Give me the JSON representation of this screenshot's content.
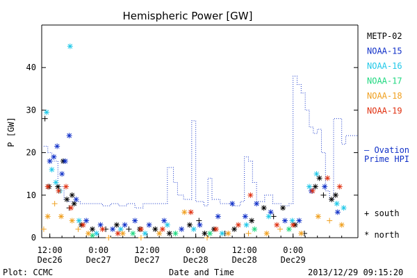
{
  "chart_data": {
    "type": "scatter",
    "title": "Hemispheric Power [GW]",
    "ylabel": "P [GW]",
    "xlabel": "Date and Time",
    "footer_left": "Plot: CCMC",
    "footer_right": "2013/12/29 09:15:20",
    "ylim": [
      0,
      50
    ],
    "yticks": [
      0,
      10,
      20,
      30,
      40
    ],
    "xlim_hours": [
      -14,
      45
    ],
    "xticks": [
      {
        "h": -12,
        "time": "12:00",
        "date": "Dec26"
      },
      {
        "h": 0,
        "time": "0:00",
        "date": "Dec27"
      },
      {
        "h": 12,
        "time": "12:00",
        "date": "Dec27"
      },
      {
        "h": 24,
        "time": "0:00",
        "date": "Dec28"
      },
      {
        "h": 36,
        "time": "12:00",
        "date": "Dec28"
      },
      {
        "h": 48,
        "time": "0:00",
        "date": "Dec29"
      }
    ],
    "legend": {
      "satellites": [
        {
          "name": "METP-02",
          "color": "#000000"
        },
        {
          "name": "NOAA-15",
          "color": "#1030c8"
        },
        {
          "name": "NOAA-16",
          "color": "#20c8e8"
        },
        {
          "name": "NOAA-17",
          "color": "#20d880"
        },
        {
          "name": "NOAA-18",
          "color": "#f0a020"
        },
        {
          "name": "NOAA-19",
          "color": "#e03010"
        }
      ],
      "ovation_label": [
        "— Ovation",
        "Prime HPI"
      ],
      "ovation_color": "#1030c8",
      "symbols": [
        {
          "symbol": "+",
          "label": "south"
        },
        {
          "symbol": "*",
          "label": "north"
        }
      ]
    },
    "ovation_series": [
      [
        -13.5,
        21.5
      ],
      [
        -12.5,
        20
      ],
      [
        -11.5,
        18
      ],
      [
        -10,
        12
      ],
      [
        -8.5,
        9
      ],
      [
        -7.5,
        8.5
      ],
      [
        -4.5,
        8
      ],
      [
        -2,
        8
      ],
      [
        1,
        7.5
      ],
      [
        3,
        8
      ],
      [
        5,
        7.5
      ],
      [
        7,
        8
      ],
      [
        9,
        7
      ],
      [
        11,
        8
      ],
      [
        14,
        8
      ],
      [
        17,
        16.5
      ],
      [
        18.5,
        13
      ],
      [
        19.5,
        10
      ],
      [
        21,
        9
      ],
      [
        23,
        27.5
      ],
      [
        24,
        8.5
      ],
      [
        26,
        7.5
      ],
      [
        27,
        14
      ],
      [
        28,
        9
      ],
      [
        30,
        8
      ],
      [
        33,
        7.5
      ],
      [
        35,
        8.5
      ],
      [
        36,
        19
      ],
      [
        37,
        18
      ],
      [
        38,
        13
      ],
      [
        39,
        8.5
      ],
      [
        41,
        10
      ],
      [
        43,
        8
      ],
      [
        45,
        7.5
      ],
      [
        47,
        8
      ],
      [
        48,
        38
      ],
      [
        49,
        36
      ],
      [
        50,
        34
      ],
      [
        51,
        30
      ],
      [
        52,
        26
      ],
      [
        53,
        24.5
      ],
      [
        54,
        25.5
      ],
      [
        55,
        20
      ],
      [
        56,
        11
      ],
      [
        57,
        9
      ],
      [
        58,
        28
      ],
      [
        60,
        22
      ],
      [
        61,
        24
      ],
      [
        62,
        24
      ]
    ],
    "points": [
      {
        "sat": "METP-02",
        "hem": "south",
        "x": -13.2,
        "y": 28
      },
      {
        "sat": "METP-02",
        "hem": "north",
        "x": -12.2,
        "y": 12
      },
      {
        "sat": "METP-02",
        "hem": "north",
        "x": -10.0,
        "y": 12
      },
      {
        "sat": "METP-02",
        "hem": "north",
        "x": -8.7,
        "y": 18
      },
      {
        "sat": "METP-02",
        "hem": "north",
        "x": -7.8,
        "y": 9
      },
      {
        "sat": "METP-02",
        "hem": "north",
        "x": -6.5,
        "y": 10
      },
      {
        "sat": "METP-02",
        "hem": "north",
        "x": -6.0,
        "y": 8
      },
      {
        "sat": "METP-02",
        "hem": "south",
        "x": -7.2,
        "y": 7
      },
      {
        "sat": "METP-02",
        "hem": "north",
        "x": -4.2,
        "y": 3
      },
      {
        "sat": "METP-02",
        "hem": "north",
        "x": -1.5,
        "y": 2
      },
      {
        "sat": "METP-02",
        "hem": "south",
        "x": 1.8,
        "y": 2
      },
      {
        "sat": "METP-02",
        "hem": "north",
        "x": 4.5,
        "y": 3
      },
      {
        "sat": "METP-02",
        "hem": "south",
        "x": 7.5,
        "y": 2
      },
      {
        "sat": "METP-02",
        "hem": "north",
        "x": 10.2,
        "y": 2
      },
      {
        "sat": "METP-02",
        "hem": "north",
        "x": 14.0,
        "y": 2
      },
      {
        "sat": "METP-02",
        "hem": "north",
        "x": 17.5,
        "y": 1
      },
      {
        "sat": "METP-02",
        "hem": "north",
        "x": 22.5,
        "y": 3
      },
      {
        "sat": "METP-02",
        "hem": "south",
        "x": 24.8,
        "y": 4
      },
      {
        "sat": "METP-02",
        "hem": "north",
        "x": 26.2,
        "y": 1
      },
      {
        "sat": "METP-02",
        "hem": "north",
        "x": 28.5,
        "y": 2
      },
      {
        "sat": "METP-02",
        "hem": "south",
        "x": 31.2,
        "y": 1
      },
      {
        "sat": "METP-02",
        "hem": "north",
        "x": 33.5,
        "y": 2
      },
      {
        "sat": "METP-02",
        "hem": "north",
        "x": 37.8,
        "y": 4
      },
      {
        "sat": "METP-02",
        "hem": "north",
        "x": 40.8,
        "y": 7
      },
      {
        "sat": "METP-02",
        "hem": "south",
        "x": 43.2,
        "y": 5
      },
      {
        "sat": "METP-02",
        "hem": "north",
        "x": 45.5,
        "y": 7
      },
      {
        "sat": "METP-02",
        "hem": "north",
        "x": 48.5,
        "y": 3
      },
      {
        "sat": "METP-02",
        "hem": "south",
        "x": 50.8,
        "y": 1
      },
      {
        "sat": "METP-02",
        "hem": "north",
        "x": 53.5,
        "y": 12
      },
      {
        "sat": "METP-02",
        "hem": "north",
        "x": 54.5,
        "y": 14
      },
      {
        "sat": "METP-02",
        "hem": "south",
        "x": 55.5,
        "y": 10
      },
      {
        "sat": "METP-02",
        "hem": "north",
        "x": 57.5,
        "y": 9
      },
      {
        "sat": "METP-02",
        "hem": "north",
        "x": 58.5,
        "y": 10
      },
      {
        "sat": "NOAA-15",
        "hem": "north",
        "x": -12.0,
        "y": 18
      },
      {
        "sat": "NOAA-15",
        "hem": "north",
        "x": -11.0,
        "y": 19
      },
      {
        "sat": "NOAA-15",
        "hem": "north",
        "x": -10.2,
        "y": 21.5
      },
      {
        "sat": "NOAA-15",
        "hem": "north",
        "x": -9.0,
        "y": 15
      },
      {
        "sat": "NOAA-15",
        "hem": "north",
        "x": -8.2,
        "y": 18
      },
      {
        "sat": "NOAA-15",
        "hem": "north",
        "x": -7.2,
        "y": 24
      },
      {
        "sat": "NOAA-15",
        "hem": "north",
        "x": -5.5,
        "y": 9
      },
      {
        "sat": "NOAA-15",
        "hem": "north",
        "x": -3.0,
        "y": 4
      },
      {
        "sat": "NOAA-15",
        "hem": "north",
        "x": 0.5,
        "y": 3
      },
      {
        "sat": "NOAA-15",
        "hem": "north",
        "x": 3.5,
        "y": 2
      },
      {
        "sat": "NOAA-15",
        "hem": "north",
        "x": 6.5,
        "y": 3
      },
      {
        "sat": "NOAA-15",
        "hem": "north",
        "x": 9.0,
        "y": 4
      },
      {
        "sat": "NOAA-15",
        "hem": "north",
        "x": 12.5,
        "y": 3
      },
      {
        "sat": "NOAA-15",
        "hem": "north",
        "x": 16.2,
        "y": 4
      },
      {
        "sat": "NOAA-15",
        "hem": "north",
        "x": 20.5,
        "y": 2
      },
      {
        "sat": "NOAA-15",
        "hem": "north",
        "x": 25.0,
        "y": 3
      },
      {
        "sat": "NOAA-15",
        "hem": "north",
        "x": 29.5,
        "y": 5
      },
      {
        "sat": "NOAA-15",
        "hem": "north",
        "x": 33.0,
        "y": 8
      },
      {
        "sat": "NOAA-15",
        "hem": "north",
        "x": 36.2,
        "y": 5
      },
      {
        "sat": "NOAA-15",
        "hem": "north",
        "x": 39.0,
        "y": 8
      },
      {
        "sat": "NOAA-15",
        "hem": "north",
        "x": 42.5,
        "y": 6
      },
      {
        "sat": "NOAA-15",
        "hem": "north",
        "x": 46.0,
        "y": 4
      },
      {
        "sat": "NOAA-15",
        "hem": "north",
        "x": 49.5,
        "y": 4
      },
      {
        "sat": "NOAA-15",
        "hem": "north",
        "x": 52.5,
        "y": 11
      },
      {
        "sat": "NOAA-15",
        "hem": "north",
        "x": 55.8,
        "y": 12
      },
      {
        "sat": "NOAA-15",
        "hem": "north",
        "x": 59.0,
        "y": 6
      },
      {
        "sat": "NOAA-16",
        "hem": "north",
        "x": -12.8,
        "y": 29.5
      },
      {
        "sat": "NOAA-16",
        "hem": "north",
        "x": -11.5,
        "y": 16
      },
      {
        "sat": "NOAA-16",
        "hem": "north",
        "x": -10.5,
        "y": 13
      },
      {
        "sat": "NOAA-16",
        "hem": "north",
        "x": -9.5,
        "y": 11
      },
      {
        "sat": "NOAA-16",
        "hem": "north",
        "x": -7.0,
        "y": 45
      },
      {
        "sat": "NOAA-16",
        "hem": "north",
        "x": -4.8,
        "y": 4
      },
      {
        "sat": "NOAA-16",
        "hem": "north",
        "x": -0.5,
        "y": 1
      },
      {
        "sat": "NOAA-16",
        "hem": "north",
        "x": 5.5,
        "y": 2
      },
      {
        "sat": "NOAA-16",
        "hem": "north",
        "x": 11.5,
        "y": 1
      },
      {
        "sat": "NOAA-16",
        "hem": "north",
        "x": 17.0,
        "y": 3
      },
      {
        "sat": "NOAA-16",
        "hem": "north",
        "x": 23.5,
        "y": 2
      },
      {
        "sat": "NOAA-16",
        "hem": "north",
        "x": 30.5,
        "y": 1
      },
      {
        "sat": "NOAA-16",
        "hem": "north",
        "x": 36.5,
        "y": 3
      },
      {
        "sat": "NOAA-16",
        "hem": "north",
        "x": 42.0,
        "y": 5
      },
      {
        "sat": "NOAA-16",
        "hem": "north",
        "x": 47.8,
        "y": 4
      },
      {
        "sat": "NOAA-16",
        "hem": "north",
        "x": 52.0,
        "y": 12
      },
      {
        "sat": "NOAA-16",
        "hem": "north",
        "x": 53.8,
        "y": 15
      },
      {
        "sat": "NOAA-16",
        "hem": "north",
        "x": 58.8,
        "y": 8
      },
      {
        "sat": "NOAA-16",
        "hem": "north",
        "x": 60.5,
        "y": 7
      },
      {
        "sat": "NOAA-17",
        "hem": "north",
        "x": -1.5,
        "y": 0.5
      },
      {
        "sat": "NOAA-17",
        "hem": "north",
        "x": 8.5,
        "y": 1
      },
      {
        "sat": "NOAA-17",
        "hem": "north",
        "x": 19.0,
        "y": 1
      },
      {
        "sat": "NOAA-17",
        "hem": "north",
        "x": 27.5,
        "y": 1
      },
      {
        "sat": "NOAA-17",
        "hem": "north",
        "x": 38.5,
        "y": 2
      },
      {
        "sat": "NOAA-17",
        "hem": "north",
        "x": 47.0,
        "y": 2
      },
      {
        "sat": "NOAA-18",
        "hem": "south",
        "x": -13.5,
        "y": 2
      },
      {
        "sat": "NOAA-18",
        "hem": "north",
        "x": -12.5,
        "y": 5
      },
      {
        "sat": "NOAA-18",
        "hem": "south",
        "x": -10.8,
        "y": 8
      },
      {
        "sat": "NOAA-18",
        "hem": "north",
        "x": -9.2,
        "y": 5
      },
      {
        "sat": "NOAA-18",
        "hem": "north",
        "x": -6.5,
        "y": 4
      },
      {
        "sat": "NOAA-18",
        "hem": "south",
        "x": -5.0,
        "y": 2
      },
      {
        "sat": "NOAA-18",
        "hem": "north",
        "x": -2.5,
        "y": 1
      },
      {
        "sat": "NOAA-18",
        "hem": "south",
        "x": 2.5,
        "y": 0
      },
      {
        "sat": "NOAA-18",
        "hem": "north",
        "x": 6.0,
        "y": 1
      },
      {
        "sat": "NOAA-18",
        "hem": "south",
        "x": 10.5,
        "y": 0
      },
      {
        "sat": "NOAA-18",
        "hem": "north",
        "x": 15.0,
        "y": 1
      },
      {
        "sat": "NOAA-18",
        "hem": "north",
        "x": 21.2,
        "y": 6
      },
      {
        "sat": "NOAA-18",
        "hem": "south",
        "x": 26.8,
        "y": 0
      },
      {
        "sat": "NOAA-18",
        "hem": "north",
        "x": 32.0,
        "y": 1
      },
      {
        "sat": "NOAA-18",
        "hem": "south",
        "x": 37.0,
        "y": 1
      },
      {
        "sat": "NOAA-18",
        "hem": "north",
        "x": 41.5,
        "y": 1
      },
      {
        "sat": "NOAA-18",
        "hem": "south",
        "x": 44.8,
        "y": 2
      },
      {
        "sat": "NOAA-18",
        "hem": "north",
        "x": 50.0,
        "y": 1
      },
      {
        "sat": "NOAA-18",
        "hem": "north",
        "x": 54.2,
        "y": 5
      },
      {
        "sat": "NOAA-18",
        "hem": "south",
        "x": 57.0,
        "y": 4
      },
      {
        "sat": "NOAA-18",
        "hem": "north",
        "x": 60.0,
        "y": 3
      },
      {
        "sat": "NOAA-19",
        "hem": "north",
        "x": -12.5,
        "y": 12
      },
      {
        "sat": "NOAA-19",
        "hem": "north",
        "x": -9.8,
        "y": 11
      },
      {
        "sat": "NOAA-19",
        "hem": "north",
        "x": -8.0,
        "y": 12
      },
      {
        "sat": "NOAA-19",
        "hem": "north",
        "x": -6.8,
        "y": 7
      },
      {
        "sat": "NOAA-19",
        "hem": "north",
        "x": -3.8,
        "y": 3
      },
      {
        "sat": "NOAA-19",
        "hem": "north",
        "x": 1.0,
        "y": 2
      },
      {
        "sat": "NOAA-19",
        "hem": "north",
        "x": 4.8,
        "y": 1
      },
      {
        "sat": "NOAA-19",
        "hem": "north",
        "x": 10.5,
        "y": 2
      },
      {
        "sat": "NOAA-19",
        "hem": "north",
        "x": 15.8,
        "y": 2
      },
      {
        "sat": "NOAA-19",
        "hem": "north",
        "x": 22.8,
        "y": 6
      },
      {
        "sat": "NOAA-19",
        "hem": "north",
        "x": 29.0,
        "y": 2
      },
      {
        "sat": "NOAA-19",
        "hem": "north",
        "x": 34.5,
        "y": 3
      },
      {
        "sat": "NOAA-19",
        "hem": "north",
        "x": 37.5,
        "y": 10
      },
      {
        "sat": "NOAA-19",
        "hem": "north",
        "x": 44.0,
        "y": 3
      },
      {
        "sat": "NOAA-19",
        "hem": "north",
        "x": 48.0,
        "y": 3
      },
      {
        "sat": "NOAA-19",
        "hem": "north",
        "x": 52.8,
        "y": 11
      },
      {
        "sat": "NOAA-19",
        "hem": "north",
        "x": 56.5,
        "y": 14
      },
      {
        "sat": "NOAA-19",
        "hem": "north",
        "x": 59.5,
        "y": 12
      }
    ]
  }
}
